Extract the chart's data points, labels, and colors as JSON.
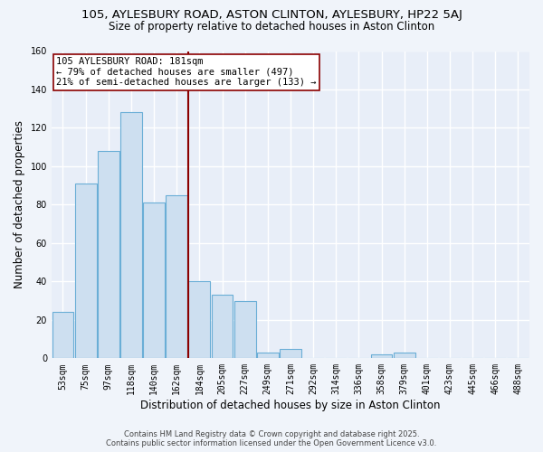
{
  "title_line1": "105, AYLESBURY ROAD, ASTON CLINTON, AYLESBURY, HP22 5AJ",
  "title_line2": "Size of property relative to detached houses in Aston Clinton",
  "bar_labels": [
    "53sqm",
    "75sqm",
    "97sqm",
    "118sqm",
    "140sqm",
    "162sqm",
    "184sqm",
    "205sqm",
    "227sqm",
    "249sqm",
    "271sqm",
    "292sqm",
    "314sqm",
    "336sqm",
    "358sqm",
    "379sqm",
    "401sqm",
    "423sqm",
    "445sqm",
    "466sqm",
    "488sqm"
  ],
  "bar_heights": [
    24,
    91,
    108,
    128,
    81,
    85,
    40,
    33,
    30,
    3,
    5,
    0,
    0,
    0,
    2,
    3,
    0,
    0,
    0,
    0,
    0
  ],
  "bar_color": "#cddff0",
  "bar_edge_color": "#6aaed6",
  "plot_bg_color": "#e8eef8",
  "fig_bg_color": "#f0f4fa",
  "grid_color": "#c8d4e8",
  "ylabel": "Number of detached properties",
  "xlabel": "Distribution of detached houses by size in Aston Clinton",
  "ylim": [
    0,
    160
  ],
  "yticks": [
    0,
    20,
    40,
    60,
    80,
    100,
    120,
    140,
    160
  ],
  "ref_line_idx": 6,
  "ref_line_color": "#8b0000",
  "annotation_title": "105 AYLESBURY ROAD: 181sqm",
  "annotation_line1": "← 79% of detached houses are smaller (497)",
  "annotation_line2": "21% of semi-detached houses are larger (133) →",
  "footer_line1": "Contains HM Land Registry data © Crown copyright and database right 2025.",
  "footer_line2": "Contains public sector information licensed under the Open Government Licence v3.0."
}
